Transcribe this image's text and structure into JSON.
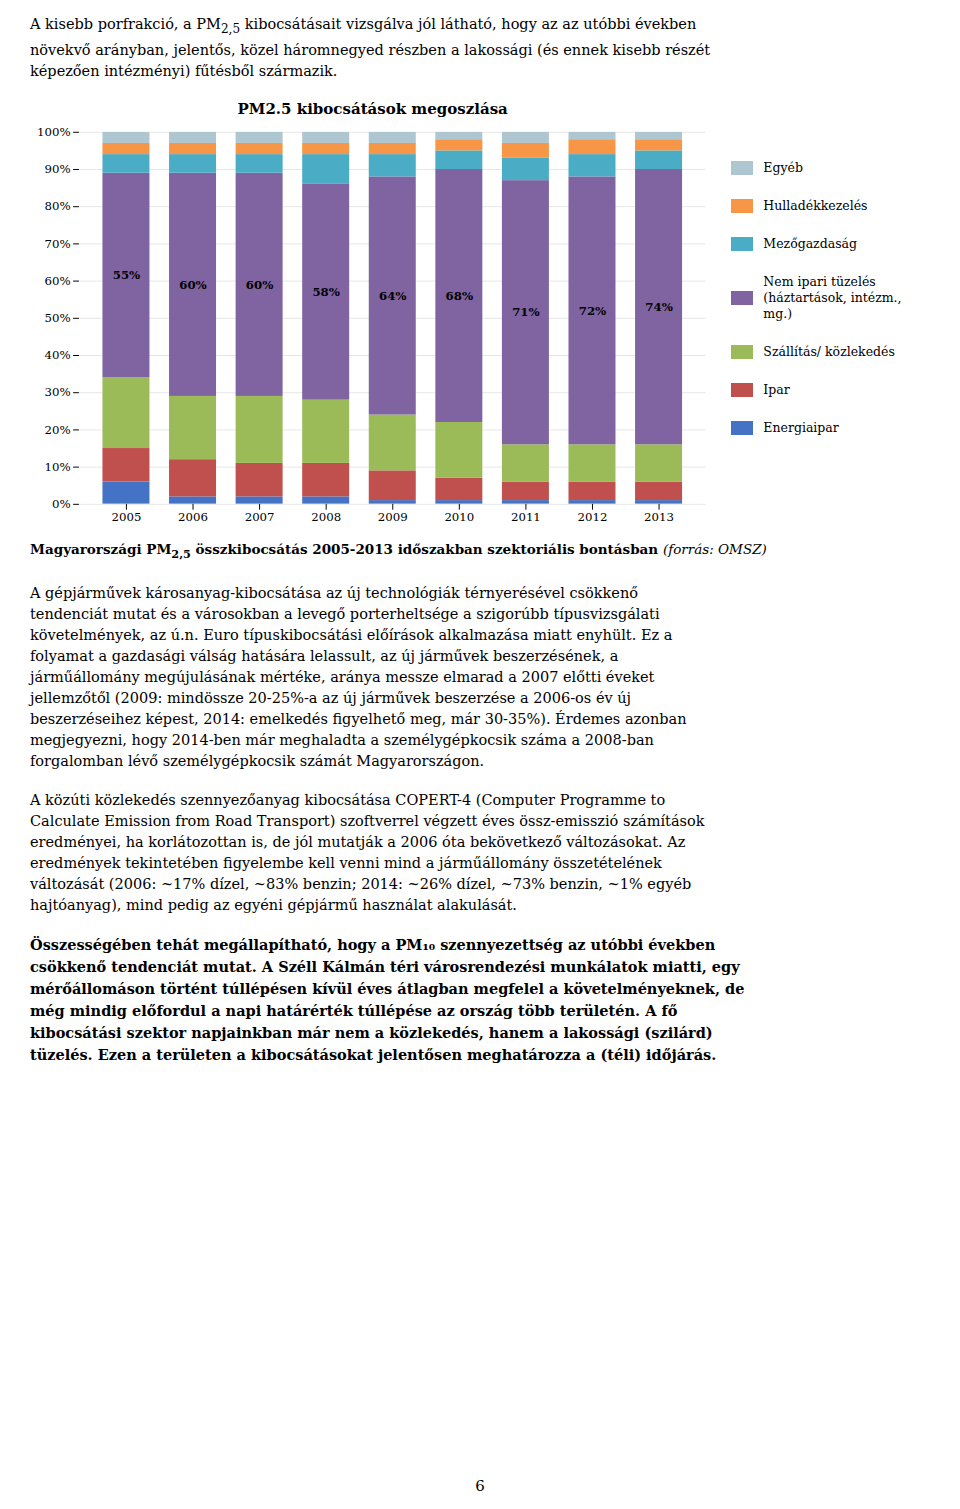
{
  "chart_data": {
    "type": "bar",
    "stacked": true,
    "title": "PM2.5 kibocsátások megoszlása",
    "categories": [
      "2005",
      "2006",
      "2007",
      "2008",
      "2009",
      "2010",
      "2011",
      "2012",
      "2013"
    ],
    "series": [
      {
        "name": "Energiaipar",
        "color": "#4472C4",
        "values": [
          6,
          2,
          2,
          2,
          1,
          1,
          1,
          1,
          1
        ]
      },
      {
        "name": "Ipar",
        "color": "#C0504D",
        "values": [
          9,
          10,
          9,
          9,
          8,
          6,
          5,
          5,
          5
        ]
      },
      {
        "name": "Szállítás/ közlekedés",
        "color": "#9BBB59",
        "values": [
          19,
          17,
          18,
          17,
          15,
          15,
          10,
          10,
          10
        ]
      },
      {
        "name": "Nem ipari tüzelés\n(háztartások, intézm., mg.)",
        "color": "#8064A2",
        "values": [
          55,
          60,
          60,
          58,
          64,
          68,
          71,
          72,
          74
        ],
        "data_labels": true,
        "value_labels": [
          "55%",
          "60%",
          "60%",
          "58%",
          "64%",
          "68%",
          "71%",
          "72%",
          "74%"
        ]
      },
      {
        "name": "Mezőgazdaság",
        "color": "#4BACC6",
        "values": [
          5,
          5,
          5,
          8,
          6,
          5,
          6,
          6,
          5
        ]
      },
      {
        "name": "Hulladékkezelés",
        "color": "#F79646",
        "values": [
          3,
          3,
          3,
          3,
          3,
          3,
          4,
          4,
          3
        ]
      },
      {
        "name": "Egyéb",
        "color": "#AEC6CF",
        "values": [
          3,
          3,
          3,
          3,
          3,
          2,
          3,
          2,
          2
        ]
      }
    ],
    "ylim": [
      0,
      100
    ],
    "yticks": [
      {
        "value": 0,
        "label": "0%"
      },
      {
        "value": 10,
        "label": "10%"
      },
      {
        "value": 20,
        "label": "20%"
      },
      {
        "value": 30,
        "label": "30%"
      },
      {
        "value": 40,
        "label": "40%"
      },
      {
        "value": 50,
        "label": "50%"
      },
      {
        "value": 60,
        "label": "60%"
      },
      {
        "value": 70,
        "label": "70%"
      },
      {
        "value": 80,
        "label": "80%"
      },
      {
        "value": 90,
        "label": "90%"
      },
      {
        "value": 100,
        "label": "100%"
      }
    ],
    "grid": true,
    "legend": "right"
  },
  "header": {
    "style": "normal",
    "lines": [
      [
        {
          "text": "A kisebb porfrakció, a PM",
          "style": "normal"
        },
        {
          "text": "2,5",
          "style": "sub"
        },
        {
          "text": " kibocsátásait vizsgálva jól látható, hogy az az utóbbi években",
          "style": "normal"
        }
      ],
      "növekvő arányban, jelentős, közel háromnegyed részben a lakossági (és ennek kisebb részét",
      "képezően intézményi) fűtésből származik."
    ]
  },
  "caption": [
    {
      "text": "Magyarországi PM",
      "style": "bold"
    },
    {
      "text": "2,5",
      "style": "bold sub"
    },
    {
      "text": " összkibocsátás 2005-2013 időszakban szektoriális bontásban ",
      "style": "bold"
    },
    {
      "text": "(forrás: OMSZ)",
      "style": "italic"
    }
  ],
  "paragraphs": [
    {
      "style": "normal",
      "lines": [
        "A gépjárművek károsanyag-kibocsátása az új technológiák térnyerésével csökkenő",
        "tendenciát mutat és a városokban a levegő porterheltsége a szigorúbb típusvizsgálati",
        "követelmények, az ú.n. Euro típuskibocsátási előírások alkalmazása miatt enyhült. Ez a",
        "folyamat a gazdasági válság hatására lelassult, az új járművek beszerzésének, a",
        "járműállomány megújulásának mértéke, aránya messze elmarad a 2007 előtti éveket",
        "jellemzőtől (2009: mindössze 20-25%-a az új járművek beszerzése a 2006-os év új",
        "beszerzéseihez képest, 2014: emelkedés figyelhető meg, már 30-35%). Érdemes azonban",
        "megjegyezni, hogy 2014-ben már meghaladta a személygépkocsik száma a 2008-ban",
        "forgalomban lévő személygépkocsik számát Magyarországon."
      ]
    },
    {
      "style": "normal",
      "lines": [
        "A közúti közlekedés szennyezőanyag kibocsátása COPERT-4 (Computer Programme to",
        "Calculate Emission from Road Transport) szoftverrel végzett éves össz-emisszió számítások",
        "eredményei, ha korlátozottan is, de jól mutatják a 2006 óta bekövetkező változásokat. Az",
        "eredmények tekintetében figyelembe kell venni mind a járműállomány összetételének",
        "változását (2006: ~17% dízel, ~83% benzin; 2014: ~26% dízel, ~73% benzin, ~1% egyéb",
        "hajtóanyag), mind pedig az egyéni gépjármű használat alakulását."
      ]
    },
    {
      "style": "bold",
      "lines": [
        "Összességében tehát megállapítható, hogy a PM₁₀ szennyezettség az utóbbi években",
        "csökkenő tendenciát mutat. A Széll Kálmán téri városrendezési munkálatok miatti, egy",
        "mérőállomáson történt túllépésen kívül éves átlagban megfelel a követelményeknek, de",
        "még mindig előfordul a napi határérték túllépése az ország több területén. A fő",
        "kibocsátási szektor napjainkban már nem a közlekedés, hanem a lakossági (szilárd)",
        "tüzelés. Ezen a területen a kibocsátásokat jelentősen meghatározza a (téli) időjárás."
      ]
    }
  ],
  "page_number": "6"
}
